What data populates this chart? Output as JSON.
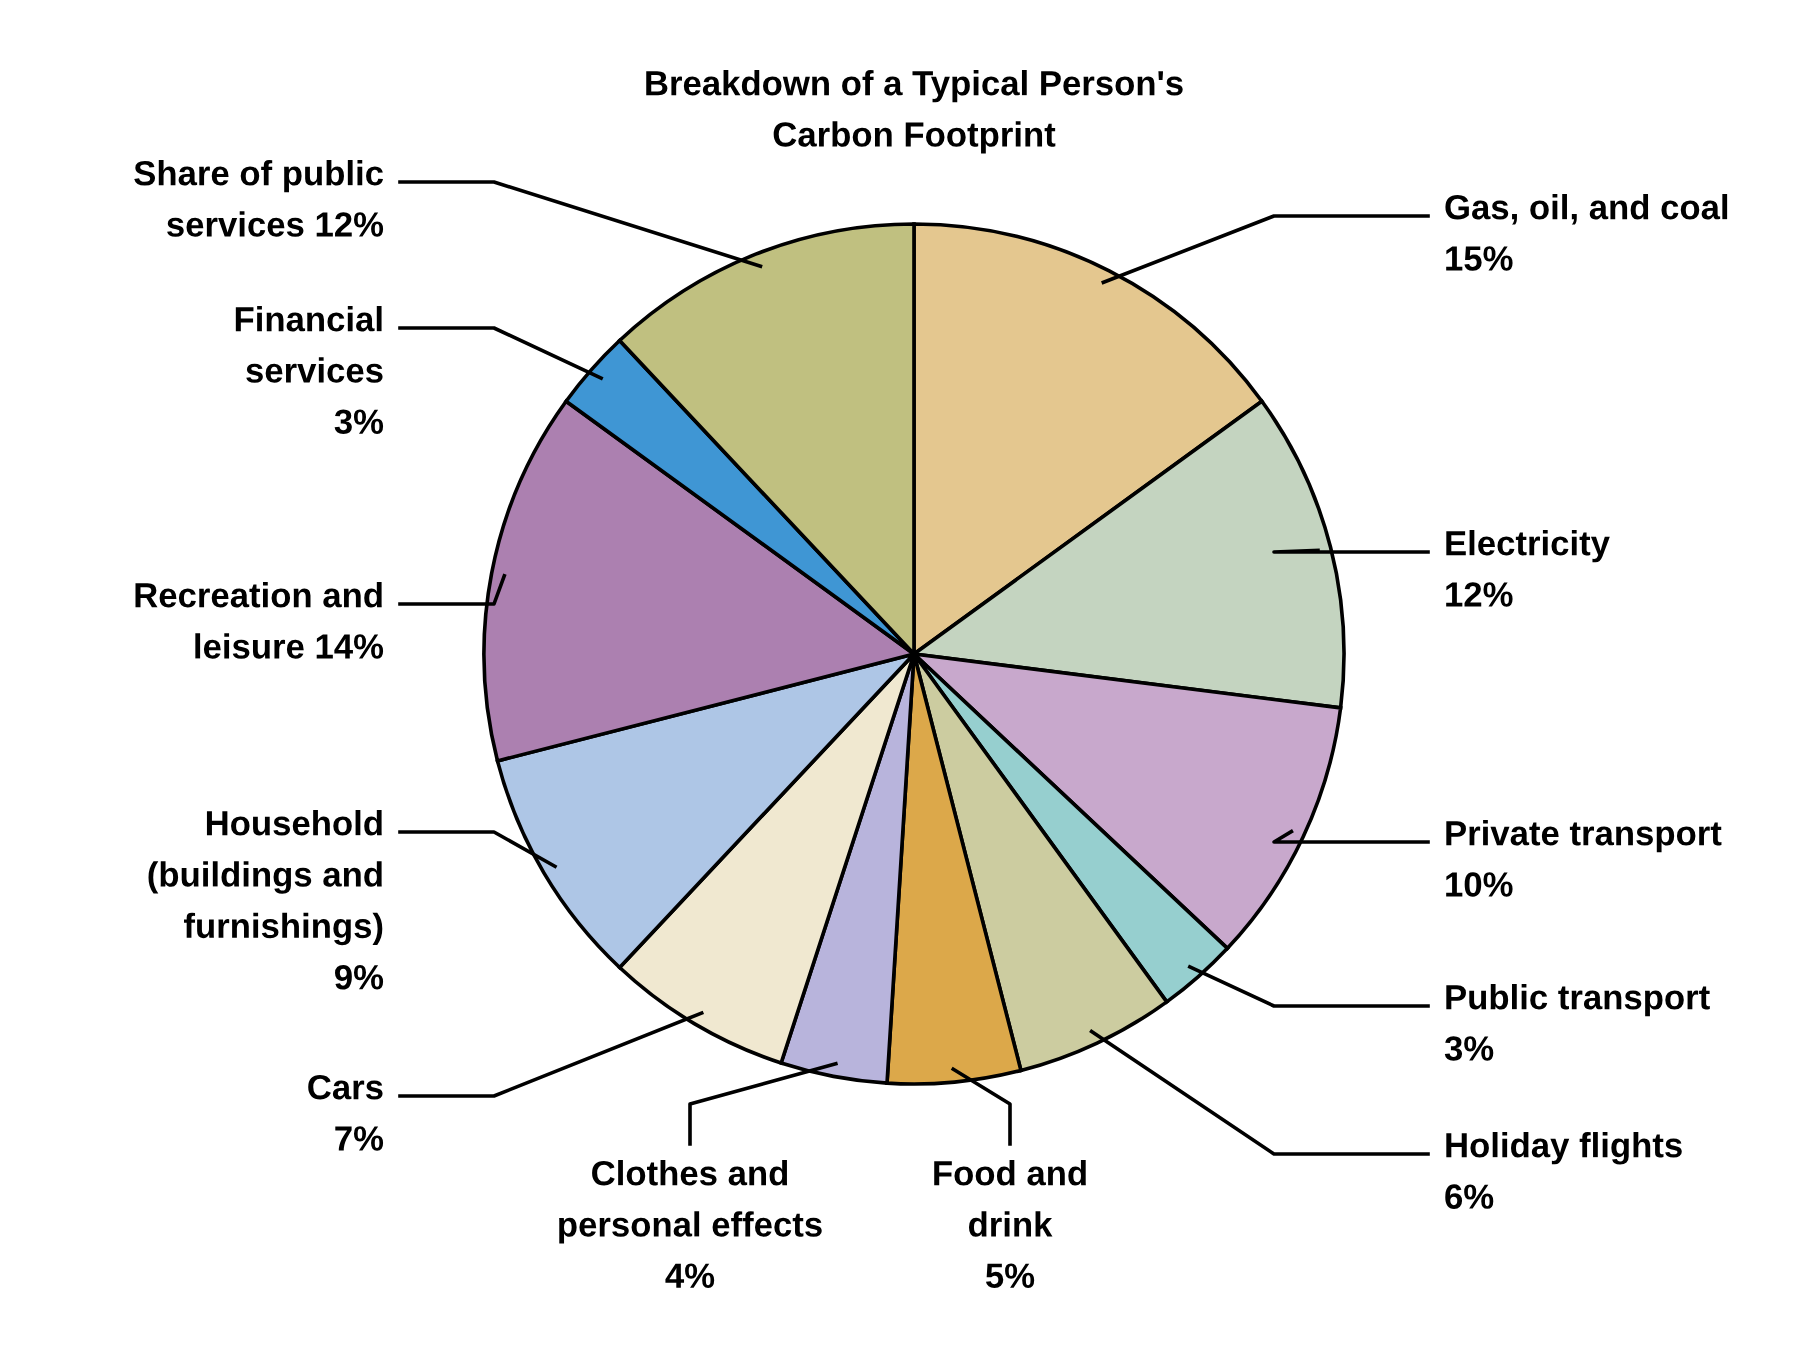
{
  "chart_data": {
    "type": "pie",
    "title": "Breakdown of a Typical Person's\nCarbon Footprint",
    "categories": [
      "Gas, oil, and coal",
      "Electricity",
      "Private transport",
      "Public transport",
      "Holiday flights",
      "Food and\ndrink",
      "Clothes and\npersonal effects",
      "Cars",
      "Household\n(buildings and\nfurnishings)",
      "Recreation and\nleisure",
      "Financial\nservices",
      "Share of public\nservices"
    ],
    "values": [
      15,
      12,
      10,
      3,
      6,
      5,
      4,
      7,
      9,
      14,
      3,
      12
    ],
    "value_labels": [
      "15%",
      "12%",
      "10%",
      "3%",
      "6%",
      "5%",
      "4%",
      "7%",
      "9%",
      "14%",
      "3%",
      "12%"
    ],
    "colors": [
      "#e4c78f",
      "#c4d4c0",
      "#c8a8cc",
      "#96cfcf",
      "#cccca0",
      "#dca84a",
      "#b8b4dc",
      "#f0e8d0",
      "#aec6e6",
      "#ac80b0",
      "#3f96d4",
      "#c0c080"
    ],
    "legend": false
  }
}
